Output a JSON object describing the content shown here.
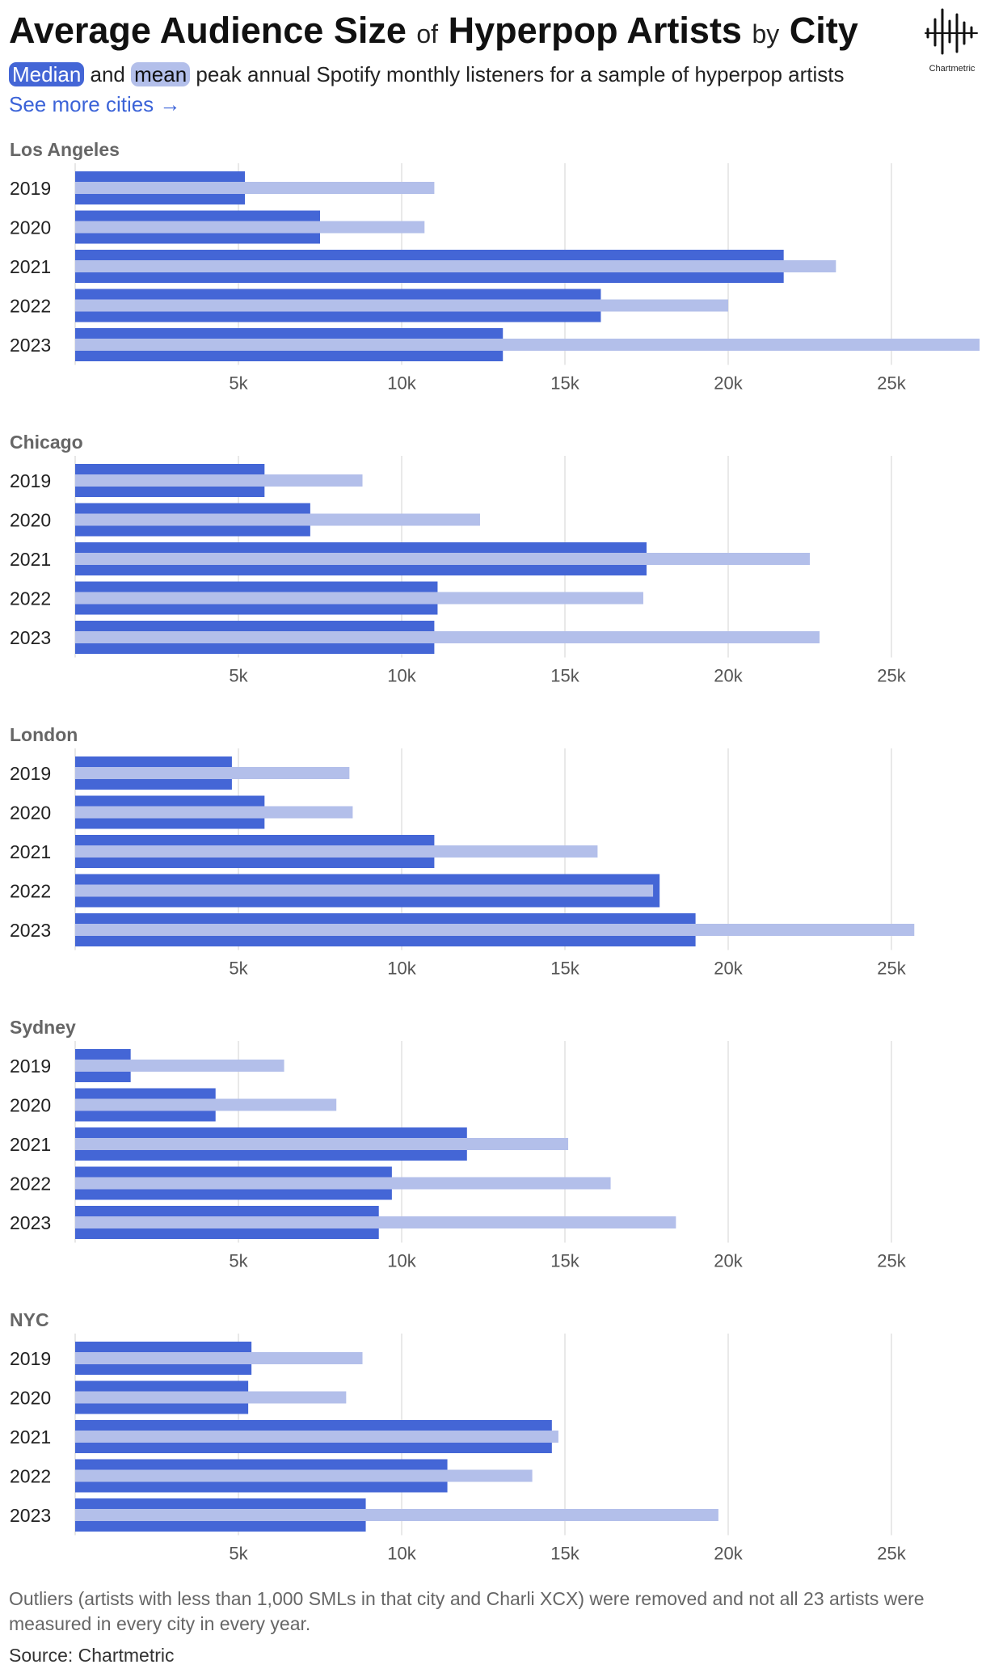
{
  "header": {
    "title_parts": [
      "Average Audience Size",
      "of",
      "Hyperpop Artists",
      "by",
      "City"
    ],
    "subtitle_median": "Median",
    "subtitle_and": "and",
    "subtitle_mean": "mean",
    "subtitle_rest": "peak annual Spotify monthly listeners for a sample of hyperpop artists",
    "more_link": "See more cities →"
  },
  "logo": {
    "label": "Chartmetric",
    "icon": "chartmetric-waveform-icon"
  },
  "colors": {
    "median": "#4466d6",
    "mean": "#b3bfea",
    "grid": "#e2e2e2",
    "city_label": "#666666",
    "year_label": "#222222",
    "tick_label": "#555555"
  },
  "chart_data": [
    {
      "type": "bar",
      "orientation": "horizontal",
      "title": "Los Angeles",
      "categories": [
        "2019",
        "2020",
        "2021",
        "2022",
        "2023"
      ],
      "series": [
        {
          "name": "Median",
          "values": [
            5200,
            7500,
            21700,
            16100,
            13100
          ]
        },
        {
          "name": "mean",
          "values": [
            11000,
            10700,
            23300,
            20000,
            27700
          ]
        }
      ],
      "xticks": [
        "5k",
        "10k",
        "15k",
        "20k",
        "25k"
      ],
      "xlim": [
        0,
        27700
      ],
      "grid": true
    },
    {
      "type": "bar",
      "orientation": "horizontal",
      "title": "Chicago",
      "categories": [
        "2019",
        "2020",
        "2021",
        "2022",
        "2023"
      ],
      "series": [
        {
          "name": "Median",
          "values": [
            5800,
            7200,
            17500,
            11100,
            11000
          ]
        },
        {
          "name": "mean",
          "values": [
            8800,
            12400,
            22500,
            17400,
            22800
          ]
        }
      ],
      "xticks": [
        "5k",
        "10k",
        "15k",
        "20k",
        "25k"
      ],
      "xlim": [
        0,
        27700
      ],
      "grid": true
    },
    {
      "type": "bar",
      "orientation": "horizontal",
      "title": "London",
      "categories": [
        "2019",
        "2020",
        "2021",
        "2022",
        "2023"
      ],
      "series": [
        {
          "name": "Median",
          "values": [
            4800,
            5800,
            11000,
            17900,
            19000
          ]
        },
        {
          "name": "mean",
          "values": [
            8400,
            8500,
            16000,
            17700,
            25700
          ]
        }
      ],
      "xticks": [
        "5k",
        "10k",
        "15k",
        "20k",
        "25k"
      ],
      "xlim": [
        0,
        27700
      ],
      "grid": true
    },
    {
      "type": "bar",
      "orientation": "horizontal",
      "title": "Sydney",
      "categories": [
        "2019",
        "2020",
        "2021",
        "2022",
        "2023"
      ],
      "series": [
        {
          "name": "Median",
          "values": [
            1700,
            4300,
            12000,
            9700,
            9300
          ]
        },
        {
          "name": "mean",
          "values": [
            6400,
            8000,
            15100,
            16400,
            18400
          ]
        }
      ],
      "xticks": [
        "5k",
        "10k",
        "15k",
        "20k",
        "25k"
      ],
      "xlim": [
        0,
        27700
      ],
      "grid": true
    },
    {
      "type": "bar",
      "orientation": "horizontal",
      "title": "NYC",
      "categories": [
        "2019",
        "2020",
        "2021",
        "2022",
        "2023"
      ],
      "series": [
        {
          "name": "Median",
          "values": [
            5400,
            5300,
            14600,
            11400,
            8900
          ]
        },
        {
          "name": "mean",
          "values": [
            8800,
            8300,
            14800,
            14000,
            19700
          ]
        }
      ],
      "xticks": [
        "5k",
        "10k",
        "15k",
        "20k",
        "25k"
      ],
      "xlim": [
        0,
        27700
      ],
      "grid": true
    }
  ],
  "footer": {
    "note": "Outliers (artists with less than 1,000 SMLs in that city and Charli XCX) were removed and not all 23 artists were measured in every city in every year.",
    "source": "Source: Chartmetric"
  }
}
